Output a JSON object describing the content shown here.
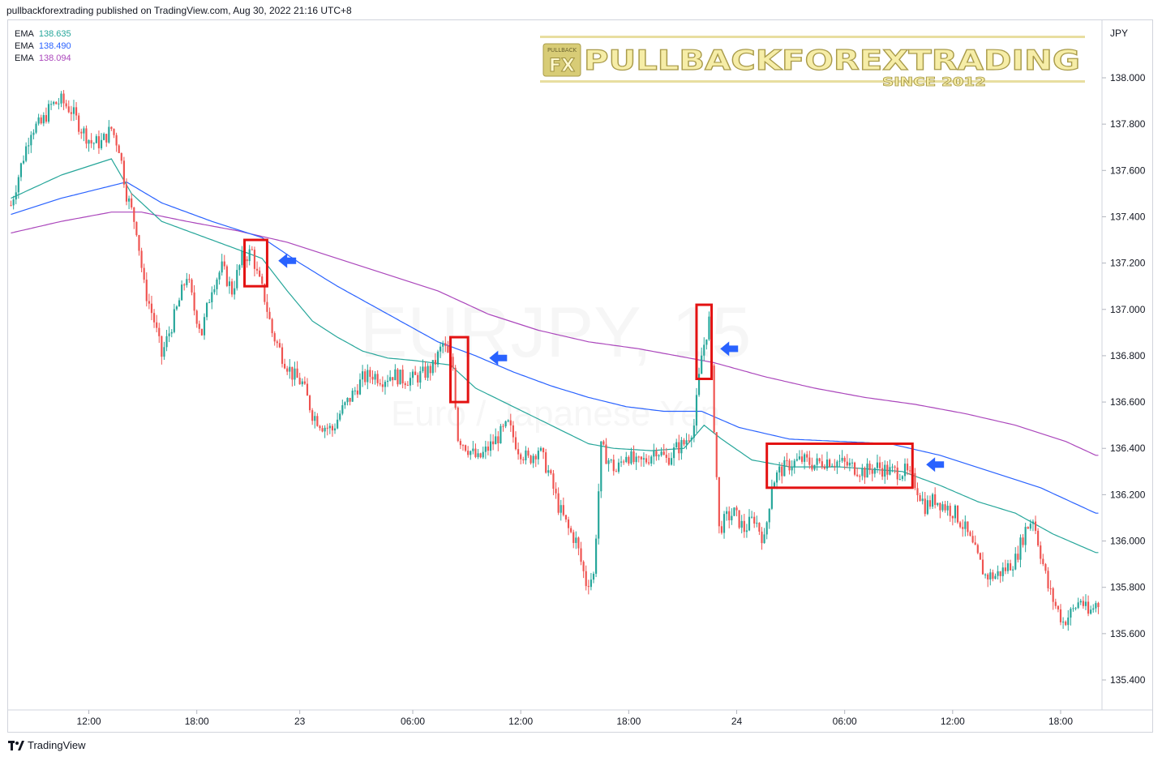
{
  "header": {
    "published_text": "pullbackforextrading published on TradingView.com, Aug 30, 2022 21:16 UTC+8"
  },
  "legend": [
    {
      "name": "EMA",
      "value": "138.635",
      "color": "#26a69a"
    },
    {
      "name": "EMA",
      "value": "138.490",
      "color": "#2962ff"
    },
    {
      "name": "EMA",
      "value": "138.094",
      "color": "#ab47bc"
    }
  ],
  "watermark": {
    "symbol": "EURJPY, 15",
    "description": "Euro / Japanese Yen"
  },
  "logo": {
    "prefix": "FX",
    "brand": "PULLBACKFOREXTRADING",
    "tagline": "SINCE 2012",
    "small": "PULLBACK"
  },
  "footer": {
    "brand": "TradingView"
  },
  "colors": {
    "up": "#26a69a",
    "down": "#ef5350",
    "box": "#e31212",
    "arrow": "#2962ff"
  },
  "chart_data": {
    "type": "candlestick",
    "symbol": "EURJPY",
    "interval": "15",
    "currency": "JPY",
    "ylim": [
      135.3,
      138.2
    ],
    "y_ticks": [
      "138.000",
      "137.800",
      "137.600",
      "137.400",
      "137.200",
      "137.000",
      "136.800",
      "136.600",
      "136.400",
      "136.200",
      "136.000",
      "135.800",
      "135.600",
      "135.400"
    ],
    "x_ticks": [
      {
        "label": "12:00",
        "bar": 31
      },
      {
        "label": "18:00",
        "bar": 74
      },
      {
        "label": "23",
        "bar": 115
      },
      {
        "label": "06:00",
        "bar": 160
      },
      {
        "label": "12:00",
        "bar": 203
      },
      {
        "label": "18:00",
        "bar": 246
      },
      {
        "label": "24",
        "bar": 289
      },
      {
        "label": "06:00",
        "bar": 332
      },
      {
        "label": "12:00",
        "bar": 375
      },
      {
        "label": "18:00",
        "bar": 418
      }
    ],
    "price_path": [
      [
        0,
        137.45
      ],
      [
        4,
        137.62
      ],
      [
        8,
        137.78
      ],
      [
        12,
        137.8
      ],
      [
        16,
        137.88
      ],
      [
        20,
        137.9
      ],
      [
        24,
        137.86
      ],
      [
        28,
        137.78
      ],
      [
        32,
        137.72
      ],
      [
        36,
        137.72
      ],
      [
        40,
        137.78
      ],
      [
        43,
        137.7
      ],
      [
        46,
        137.5
      ],
      [
        50,
        137.35
      ],
      [
        53,
        137.1
      ],
      [
        57,
        136.95
      ],
      [
        60,
        136.8
      ],
      [
        63,
        136.9
      ],
      [
        66,
        137.0
      ],
      [
        70,
        137.15
      ],
      [
        73,
        137.0
      ],
      [
        76,
        136.9
      ],
      [
        80,
        137.1
      ],
      [
        84,
        137.18
      ],
      [
        88,
        137.08
      ],
      [
        92,
        137.22
      ],
      [
        96,
        137.25
      ],
      [
        98,
        137.15
      ],
      [
        101,
        137.05
      ],
      [
        104,
        136.9
      ],
      [
        108,
        136.8
      ],
      [
        112,
        136.72
      ],
      [
        116,
        136.68
      ],
      [
        120,
        136.55
      ],
      [
        124,
        136.5
      ],
      [
        128,
        136.48
      ],
      [
        131,
        136.55
      ],
      [
        134,
        136.6
      ],
      [
        137,
        136.65
      ],
      [
        140,
        136.7
      ],
      [
        144,
        136.72
      ],
      [
        148,
        136.7
      ],
      [
        152,
        136.72
      ],
      [
        156,
        136.7
      ],
      [
        160,
        136.7
      ],
      [
        164,
        136.72
      ],
      [
        168,
        136.75
      ],
      [
        172,
        136.85
      ],
      [
        176,
        136.75
      ],
      [
        178,
        136.45
      ],
      [
        182,
        136.4
      ],
      [
        186,
        136.35
      ],
      [
        190,
        136.4
      ],
      [
        194,
        136.45
      ],
      [
        198,
        136.5
      ],
      [
        202,
        136.4
      ],
      [
        206,
        136.35
      ],
      [
        210,
        136.4
      ],
      [
        214,
        136.3
      ],
      [
        218,
        136.15
      ],
      [
        222,
        136.05
      ],
      [
        225,
        136.0
      ],
      [
        229,
        135.82
      ],
      [
        232,
        135.85
      ],
      [
        235,
        136.4
      ],
      [
        238,
        136.35
      ],
      [
        241,
        136.3
      ],
      [
        245,
        136.38
      ],
      [
        249,
        136.33
      ],
      [
        253,
        136.35
      ],
      [
        257,
        136.4
      ],
      [
        261,
        136.35
      ],
      [
        265,
        136.4
      ],
      [
        268,
        136.42
      ],
      [
        272,
        136.5
      ],
      [
        275,
        136.8
      ],
      [
        278,
        136.95
      ],
      [
        280,
        136.5
      ],
      [
        282,
        136.05
      ],
      [
        285,
        136.1
      ],
      [
        288,
        136.12
      ],
      [
        292,
        136.05
      ],
      [
        296,
        136.1
      ],
      [
        300,
        136.0
      ],
      [
        303,
        136.25
      ],
      [
        306,
        136.3
      ],
      [
        310,
        136.33
      ],
      [
        315,
        136.35
      ],
      [
        320,
        136.33
      ],
      [
        325,
        136.35
      ],
      [
        330,
        136.34
      ],
      [
        335,
        136.32
      ],
      [
        340,
        136.3
      ],
      [
        345,
        136.32
      ],
      [
        350,
        136.3
      ],
      [
        356,
        136.3
      ],
      [
        360,
        136.25
      ],
      [
        364,
        136.15
      ],
      [
        368,
        136.18
      ],
      [
        372,
        136.15
      ],
      [
        376,
        136.12
      ],
      [
        380,
        136.05
      ],
      [
        384,
        135.95
      ],
      [
        388,
        135.85
      ],
      [
        392,
        135.85
      ],
      [
        396,
        135.88
      ],
      [
        400,
        135.92
      ],
      [
        404,
        136.05
      ],
      [
        407,
        136.1
      ],
      [
        410,
        135.95
      ],
      [
        413,
        135.8
      ],
      [
        416,
        135.72
      ],
      [
        419,
        135.65
      ],
      [
        423,
        135.7
      ],
      [
        426,
        135.75
      ],
      [
        429,
        135.68
      ],
      [
        432,
        135.73
      ]
    ],
    "ema_fast": [
      [
        0,
        137.48
      ],
      [
        20,
        137.58
      ],
      [
        40,
        137.65
      ],
      [
        48,
        137.5
      ],
      [
        60,
        137.38
      ],
      [
        80,
        137.3
      ],
      [
        100,
        137.22
      ],
      [
        110,
        137.08
      ],
      [
        120,
        136.95
      ],
      [
        130,
        136.88
      ],
      [
        140,
        136.82
      ],
      [
        150,
        136.79
      ],
      [
        160,
        136.78
      ],
      [
        175,
        136.76
      ],
      [
        185,
        136.66
      ],
      [
        200,
        136.58
      ],
      [
        215,
        136.5
      ],
      [
        230,
        136.42
      ],
      [
        240,
        136.4
      ],
      [
        255,
        136.39
      ],
      [
        268,
        136.4
      ],
      [
        276,
        136.5
      ],
      [
        283,
        136.44
      ],
      [
        295,
        136.35
      ],
      [
        310,
        136.32
      ],
      [
        330,
        136.32
      ],
      [
        355,
        136.3
      ],
      [
        370,
        136.24
      ],
      [
        385,
        136.17
      ],
      [
        400,
        136.12
      ],
      [
        415,
        136.03
      ],
      [
        432,
        135.95
      ]
    ],
    "ema_medium": [
      [
        0,
        137.41
      ],
      [
        20,
        137.48
      ],
      [
        46,
        137.55
      ],
      [
        60,
        137.46
      ],
      [
        80,
        137.38
      ],
      [
        100,
        137.31
      ],
      [
        115,
        137.2
      ],
      [
        130,
        137.1
      ],
      [
        150,
        136.98
      ],
      [
        170,
        136.86
      ],
      [
        185,
        136.8
      ],
      [
        200,
        136.73
      ],
      [
        215,
        136.67
      ],
      [
        230,
        136.62
      ],
      [
        245,
        136.58
      ],
      [
        260,
        136.56
      ],
      [
        275,
        136.56
      ],
      [
        290,
        136.49
      ],
      [
        310,
        136.44
      ],
      [
        330,
        136.43
      ],
      [
        350,
        136.42
      ],
      [
        370,
        136.37
      ],
      [
        390,
        136.3
      ],
      [
        410,
        136.23
      ],
      [
        432,
        136.12
      ]
    ],
    "ema_slow": [
      [
        0,
        137.33
      ],
      [
        20,
        137.38
      ],
      [
        40,
        137.42
      ],
      [
        52,
        137.42
      ],
      [
        70,
        137.38
      ],
      [
        90,
        137.34
      ],
      [
        110,
        137.29
      ],
      [
        130,
        137.22
      ],
      [
        150,
        137.15
      ],
      [
        170,
        137.08
      ],
      [
        190,
        136.98
      ],
      [
        210,
        136.91
      ],
      [
        230,
        136.86
      ],
      [
        250,
        136.83
      ],
      [
        265,
        136.8
      ],
      [
        280,
        136.77
      ],
      [
        300,
        136.71
      ],
      [
        320,
        136.66
      ],
      [
        340,
        136.62
      ],
      [
        360,
        136.59
      ],
      [
        380,
        136.55
      ],
      [
        400,
        136.5
      ],
      [
        420,
        136.43
      ],
      [
        432,
        136.37
      ]
    ],
    "highlight_boxes": [
      {
        "from_bar": 94,
        "to_bar": 101,
        "low": 137.1,
        "high": 137.3
      },
      {
        "from_bar": 176,
        "to_bar": 181,
        "low": 136.6,
        "high": 136.88
      },
      {
        "from_bar": 274,
        "to_bar": 278,
        "low": 136.7,
        "high": 137.02
      },
      {
        "from_bar": 302,
        "to_bar": 358,
        "low": 136.23,
        "high": 136.42
      }
    ],
    "arrows": [
      {
        "bar": 110,
        "price": 137.21
      },
      {
        "bar": 194,
        "price": 136.79
      },
      {
        "bar": 286,
        "price": 136.83
      },
      {
        "bar": 368,
        "price": 136.33
      }
    ]
  }
}
